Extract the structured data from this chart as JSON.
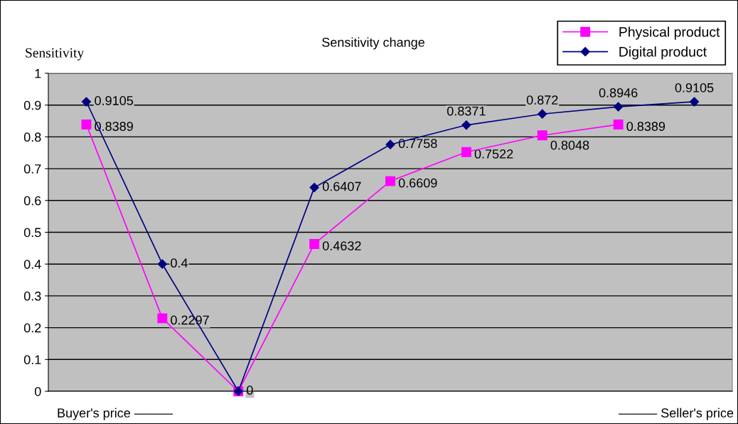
{
  "chart_data": {
    "type": "line",
    "title": "Sensitivity change",
    "ylabel": "Sensitivity",
    "categories": [
      null,
      null,
      null,
      null,
      null,
      null,
      null,
      null,
      null
    ],
    "series": [
      {
        "name": "Physical product",
        "color": "#ff00ff",
        "marker": "square",
        "values": [
          0.8389,
          0.2297,
          0,
          0.4632,
          0.6609,
          0.7522,
          0.8048,
          0.8389,
          null
        ],
        "value_labels": [
          "0.8389",
          "0.2297",
          null,
          "0.4632",
          "0.6609",
          "0.7522",
          "0.8048",
          "0.8389",
          null
        ]
      },
      {
        "name": "Digital product",
        "color": "#000080",
        "marker": "diamond",
        "values": [
          0.9105,
          0.4,
          0,
          0.6407,
          0.7758,
          0.8371,
          0.872,
          0.8946,
          0.9105
        ],
        "value_labels": [
          "0.9105",
          "0.4",
          "0",
          "0.6407",
          "0.7758",
          "0.8371",
          "0.872",
          "0.8946",
          "0.9105"
        ]
      }
    ],
    "ylim": [
      0,
      1
    ],
    "yticks": [
      0,
      0.1,
      0.2,
      0.3,
      0.4,
      0.5,
      0.6,
      0.7,
      0.8,
      0.9,
      1
    ],
    "grid": "y",
    "legend": "top right",
    "annotations": [
      "Buyer's price ———",
      "——— Seller's price"
    ]
  }
}
